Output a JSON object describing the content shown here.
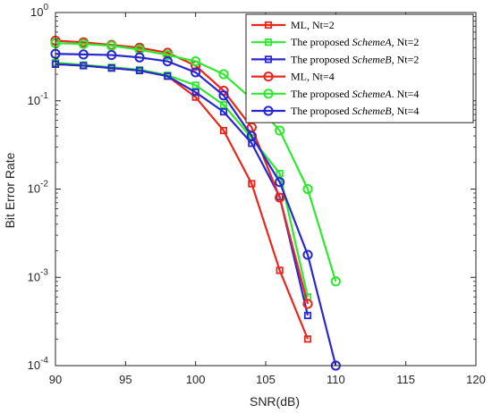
{
  "chart_data": {
    "type": "line",
    "xlabel": "SNR(dB)",
    "ylabel": "Bit Error Rate",
    "xlim": [
      90,
      120
    ],
    "ylim": [
      0.0001,
      1
    ],
    "yscale": "log",
    "xticks": [
      "90",
      "95",
      "100",
      "105",
      "110",
      "115",
      "120"
    ],
    "yticks": [
      {
        "base": "10",
        "exp": "0",
        "value": 1
      },
      {
        "base": "10",
        "exp": "-1",
        "value": 0.1
      },
      {
        "base": "10",
        "exp": "-2",
        "value": 0.01
      },
      {
        "base": "10",
        "exp": "-3",
        "value": 0.001
      },
      {
        "base": "10",
        "exp": "-4",
        "value": 0.0001
      }
    ],
    "grid": false,
    "legend_position": "top-right",
    "series": [
      {
        "name": "ML, Nt=2",
        "label_parts": [
          {
            "t": "ML, Nt=2",
            "i": false
          }
        ],
        "color": "#e8281e",
        "marker": "square",
        "x": [
          90,
          92,
          94,
          96,
          98,
          100,
          102,
          104,
          106,
          108
        ],
        "y": [
          0.26,
          0.25,
          0.235,
          0.22,
          0.19,
          0.11,
          0.046,
          0.0115,
          0.0012,
          0.0002
        ]
      },
      {
        "name": "The proposed SchemeA, Nt=2",
        "label_parts": [
          {
            "t": "The proposed ",
            "i": false
          },
          {
            "t": "SchemeA",
            "i": true
          },
          {
            "t": ", Nt=2",
            "i": false
          }
        ],
        "color": "#2ee82e",
        "marker": "square",
        "x": [
          90,
          92,
          94,
          96,
          98,
          100,
          102,
          104,
          106,
          108
        ],
        "y": [
          0.27,
          0.255,
          0.24,
          0.225,
          0.195,
          0.15,
          0.09,
          0.038,
          0.015,
          0.0006
        ]
      },
      {
        "name": "The proposed SchemeB, Nt=2",
        "label_parts": [
          {
            "t": "The proposed ",
            "i": false
          },
          {
            "t": "SchemeB",
            "i": true
          },
          {
            "t": ", Nt=2",
            "i": false
          }
        ],
        "color": "#2828d2",
        "marker": "square",
        "x": [
          90,
          92,
          94,
          96,
          98,
          100,
          102,
          104,
          106,
          108
        ],
        "y": [
          0.26,
          0.25,
          0.235,
          0.22,
          0.19,
          0.125,
          0.075,
          0.033,
          0.0082,
          0.00037
        ]
      },
      {
        "name": "ML, Nt=4",
        "label_parts": [
          {
            "t": "ML, Nt=4",
            "i": false
          }
        ],
        "color": "#e8281e",
        "marker": "circle",
        "x": [
          90,
          92,
          94,
          96,
          98,
          100,
          102,
          104,
          106,
          108
        ],
        "y": [
          0.48,
          0.46,
          0.43,
          0.4,
          0.35,
          0.25,
          0.13,
          0.05,
          0.008,
          0.0005
        ]
      },
      {
        "name": "The proposed SchemeA, Nt=4",
        "label_parts": [
          {
            "t": "The proposed ",
            "i": false
          },
          {
            "t": "SchemeA",
            "i": true
          },
          {
            "t": ". Nt=4",
            "i": false
          }
        ],
        "color": "#2ee82e",
        "marker": "circle",
        "x": [
          90,
          92,
          94,
          96,
          98,
          100,
          102,
          104,
          106,
          108,
          110
        ],
        "y": [
          0.45,
          0.44,
          0.42,
          0.38,
          0.33,
          0.28,
          0.2,
          0.105,
          0.046,
          0.01,
          0.0009
        ]
      },
      {
        "name": "The proposed SchemeB, Nt=4",
        "label_parts": [
          {
            "t": "The proposed ",
            "i": false
          },
          {
            "t": "SchemeB",
            "i": true
          },
          {
            "t": ", Nt=4",
            "i": false
          }
        ],
        "color": "#2828d2",
        "marker": "circle",
        "x": [
          90,
          92,
          94,
          96,
          98,
          100,
          102,
          104,
          106,
          108,
          110
        ],
        "y": [
          0.34,
          0.335,
          0.33,
          0.31,
          0.28,
          0.21,
          0.115,
          0.04,
          0.012,
          0.0018,
          0.0001
        ]
      }
    ]
  }
}
